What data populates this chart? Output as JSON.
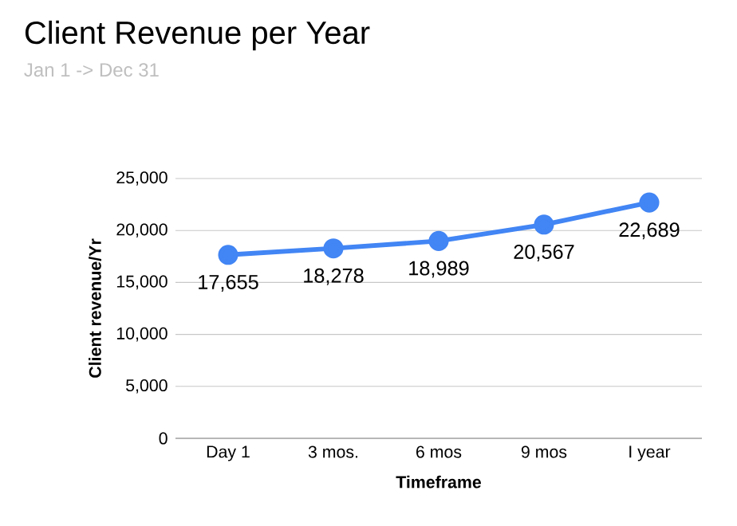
{
  "chart_data": {
    "type": "line",
    "title": "Client Revenue per Year",
    "subtitle": "Jan 1 -> Dec 31",
    "xlabel": "Timeframe",
    "ylabel": "Client revenue/Yr",
    "categories": [
      "Day 1",
      "3 mos.",
      "6 mos",
      "9 mos",
      "I year"
    ],
    "series": [
      {
        "color": "#4285f4",
        "values": [
          17655,
          18278,
          18989,
          20567,
          22689
        ],
        "value_labels": [
          "17,655",
          "18,278",
          "18,989",
          "20,567",
          "22,689"
        ]
      }
    ],
    "ylim": [
      0,
      25000
    ],
    "yticks": [
      {
        "value": 0,
        "label": "0"
      },
      {
        "value": 5000,
        "label": "5,000"
      },
      {
        "value": 10000,
        "label": "10,000"
      },
      {
        "value": 15000,
        "label": "15,000"
      },
      {
        "value": 20000,
        "label": "20,000"
      },
      {
        "value": 25000,
        "label": "25,000"
      }
    ],
    "grid": "y",
    "marker": "circle",
    "line_style": "solid"
  }
}
